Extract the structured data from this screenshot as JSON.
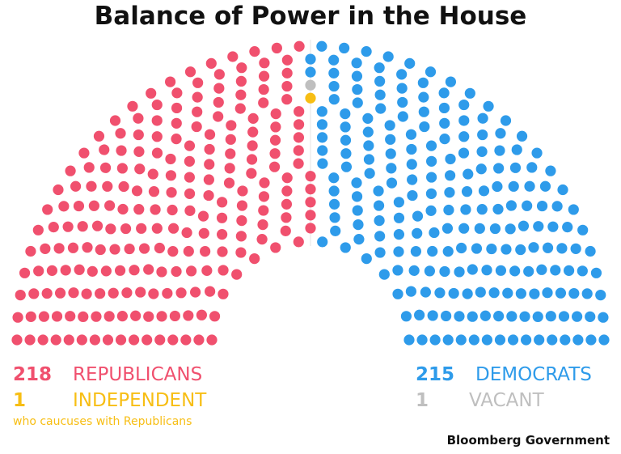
{
  "chart_data": {
    "type": "parliament",
    "title": "Balance of Power in the House",
    "total_seats": 435,
    "rows": 16,
    "series": [
      {
        "key": "republicans",
        "count": "218",
        "name": "REPUBLICANS",
        "seats": 218,
        "color": "#F0506E",
        "side": "left"
      },
      {
        "key": "independent",
        "count": "1",
        "name": "INDEPENDENT",
        "seats": 1,
        "color": "#F7BE14",
        "side": "left",
        "note": "who caucuses with Republicans"
      },
      {
        "key": "vacant",
        "count": "1",
        "name": "VACANT",
        "seats": 1,
        "color": "#BFBFBF",
        "side": "right"
      },
      {
        "key": "democrats",
        "count": "215",
        "name": "DEMOCRATS",
        "seats": 215,
        "color": "#2E9BEA",
        "side": "right"
      }
    ]
  },
  "source": "Bloomberg Government"
}
